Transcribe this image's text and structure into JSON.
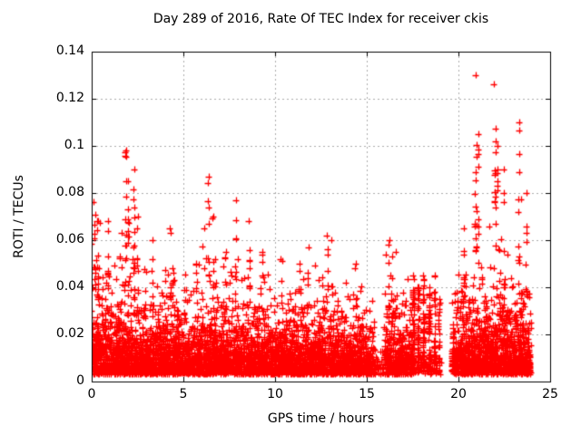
{
  "chart_data": {
    "type": "scatter",
    "title": "Day 289 of 2016, Rate Of TEC Index for receiver ckis",
    "xlabel": "GPS time / hours",
    "ylabel": "ROTI / TECUs",
    "xlim": [
      0,
      25
    ],
    "ylim": [
      0,
      0.14
    ],
    "xtick_values": [
      0,
      5,
      10,
      15,
      20,
      25
    ],
    "xtick_labels": [
      "0",
      "5",
      "10",
      "15",
      "20",
      "25"
    ],
    "ytick_values": [
      0,
      0.02,
      0.04,
      0.06,
      0.08,
      0.1,
      0.12,
      0.14
    ],
    "ytick_labels": [
      "0",
      "0.02",
      "0.04",
      "0.06",
      "0.08",
      "0.1",
      "0.12",
      "0.14"
    ],
    "grid": true,
    "grid_style": "dashed",
    "grid_color": "#ababab",
    "border_color": "#000000",
    "legend": "none",
    "marker": {
      "shape": "plus",
      "color": "#ff0000",
      "size": 7
    },
    "data_time_range_h": [
      0,
      24
    ],
    "gaps_h": [
      [
        15.45,
        15.95
      ],
      [
        19.05,
        19.65
      ],
      [
        24,
        25
      ]
    ],
    "series": [
      {
        "name": "ROTI",
        "y_floor": 0.003,
        "segments_format": [
          "t_start_h",
          "t_end_h",
          "n_points",
          "exp_scale_TECU",
          "y_cap_TECU"
        ],
        "segments": [
          [
            0,
            0.5,
            160,
            0.011,
            0.076
          ],
          [
            0.5,
            1,
            150,
            0.01,
            0.07
          ],
          [
            1,
            1.5,
            150,
            0.009,
            0.055
          ],
          [
            1.5,
            2,
            160,
            0.011,
            0.098
          ],
          [
            2,
            2.5,
            150,
            0.01,
            0.09
          ],
          [
            2.5,
            3,
            150,
            0.009,
            0.065
          ],
          [
            3,
            3.5,
            150,
            0.009,
            0.06
          ],
          [
            3.5,
            4,
            150,
            0.009,
            0.056
          ],
          [
            4,
            4.5,
            150,
            0.01,
            0.065
          ],
          [
            4.5,
            5,
            150,
            0.009,
            0.06
          ],
          [
            5,
            5.5,
            140,
            0.008,
            0.046
          ],
          [
            5.5,
            6,
            140,
            0.009,
            0.05
          ],
          [
            6,
            6.5,
            150,
            0.01,
            0.085
          ],
          [
            6.5,
            7,
            150,
            0.009,
            0.07
          ],
          [
            7,
            7.5,
            150,
            0.009,
            0.06
          ],
          [
            7.5,
            8,
            150,
            0.009,
            0.075
          ],
          [
            8,
            8.5,
            150,
            0.009,
            0.06
          ],
          [
            8.5,
            9,
            150,
            0.009,
            0.068
          ],
          [
            9,
            9.5,
            140,
            0.009,
            0.055
          ],
          [
            9.5,
            10,
            140,
            0.008,
            0.05
          ],
          [
            10,
            10.5,
            140,
            0.008,
            0.046
          ],
          [
            10.5,
            11,
            140,
            0.008,
            0.05
          ],
          [
            11,
            11.5,
            140,
            0.009,
            0.055
          ],
          [
            11.5,
            12,
            140,
            0.009,
            0.06
          ],
          [
            12,
            12.5,
            140,
            0.008,
            0.05
          ],
          [
            12.5,
            13,
            140,
            0.009,
            0.062
          ],
          [
            13,
            13.5,
            140,
            0.008,
            0.05
          ],
          [
            13.5,
            14,
            140,
            0.008,
            0.046
          ],
          [
            14,
            14.5,
            140,
            0.008,
            0.05
          ],
          [
            14.5,
            15,
            130,
            0.008,
            0.046
          ],
          [
            15,
            15.45,
            110,
            0.007,
            0.04
          ],
          [
            15.45,
            15.95,
            22,
            0.004,
            0.014
          ],
          [
            15.95,
            16.5,
            150,
            0.01,
            0.06
          ],
          [
            16.5,
            17,
            150,
            0.009,
            0.055
          ],
          [
            17,
            17.5,
            120,
            0.008,
            0.046
          ],
          [
            17.5,
            19.05,
            60,
            0.004,
            0.012
          ],
          [
            19.65,
            20.5,
            270,
            0.01,
            0.065
          ],
          [
            20.5,
            21.2,
            230,
            0.01,
            0.075
          ],
          [
            21.2,
            22.3,
            350,
            0.011,
            0.085
          ],
          [
            22.3,
            23,
            230,
            0.01,
            0.085
          ],
          [
            23,
            23.5,
            165,
            0.01,
            0.09
          ],
          [
            23.5,
            23.95,
            140,
            0.009,
            0.08
          ]
        ],
        "columns_format": [
          "t_center_h",
          "t_halfwidth_h",
          "y_min_TECU",
          "y_max_TECU",
          "n_points"
        ],
        "columns": [
          [
            0.15,
            0.05,
            0.04,
            0.076,
            10
          ],
          [
            0.32,
            0.04,
            0.035,
            0.068,
            8
          ],
          [
            0.9,
            0.03,
            0.04,
            0.068,
            7
          ],
          [
            1.85,
            0.05,
            0.05,
            0.098,
            12
          ],
          [
            2.0,
            0.04,
            0.04,
            0.085,
            9
          ],
          [
            2.3,
            0.04,
            0.045,
            0.09,
            9
          ],
          [
            2.5,
            0.03,
            0.035,
            0.07,
            6
          ],
          [
            3.3,
            0.03,
            0.035,
            0.06,
            5
          ],
          [
            4.3,
            0.04,
            0.035,
            0.065,
            7
          ],
          [
            5.7,
            0.03,
            0.03,
            0.05,
            5
          ],
          [
            6.35,
            0.04,
            0.045,
            0.087,
            9
          ],
          [
            6.6,
            0.03,
            0.035,
            0.07,
            6
          ],
          [
            7.3,
            0.03,
            0.03,
            0.055,
            5
          ],
          [
            7.85,
            0.04,
            0.04,
            0.077,
            8
          ],
          [
            8.6,
            0.03,
            0.035,
            0.068,
            7
          ],
          [
            9.3,
            0.03,
            0.03,
            0.055,
            5
          ],
          [
            10.35,
            0.03,
            0.03,
            0.052,
            4
          ],
          [
            11.3,
            0.03,
            0.03,
            0.05,
            4
          ],
          [
            11.8,
            0.03,
            0.032,
            0.057,
            5
          ],
          [
            12.85,
            0.03,
            0.04,
            0.062,
            5
          ],
          [
            13.1,
            0.03,
            0.035,
            0.06,
            4
          ],
          [
            14.4,
            0.03,
            0.028,
            0.05,
            4
          ],
          [
            16.2,
            0.04,
            0.03,
            0.06,
            7
          ],
          [
            16.55,
            0.03,
            0.028,
            0.055,
            5
          ],
          [
            17.55,
            0.05,
            0.004,
            0.045,
            40
          ],
          [
            17.8,
            0.05,
            0.004,
            0.04,
            40
          ],
          [
            18.1,
            0.05,
            0.004,
            0.045,
            45
          ],
          [
            18.4,
            0.05,
            0.004,
            0.04,
            45
          ],
          [
            18.7,
            0.05,
            0.004,
            0.045,
            40
          ],
          [
            18.95,
            0.04,
            0.004,
            0.035,
            30
          ],
          [
            20.3,
            0.03,
            0.035,
            0.065,
            7
          ],
          [
            20.95,
            0.05,
            0.055,
            0.13,
            16
          ],
          [
            21.1,
            0.03,
            0.05,
            0.105,
            8
          ],
          [
            22.0,
            0.05,
            0.05,
            0.126,
            14
          ],
          [
            22.15,
            0.03,
            0.045,
            0.1,
            7
          ],
          [
            22.5,
            0.04,
            0.04,
            0.09,
            9
          ],
          [
            23.3,
            0.05,
            0.05,
            0.11,
            12
          ],
          [
            23.7,
            0.04,
            0.035,
            0.08,
            8
          ]
        ]
      }
    ]
  }
}
